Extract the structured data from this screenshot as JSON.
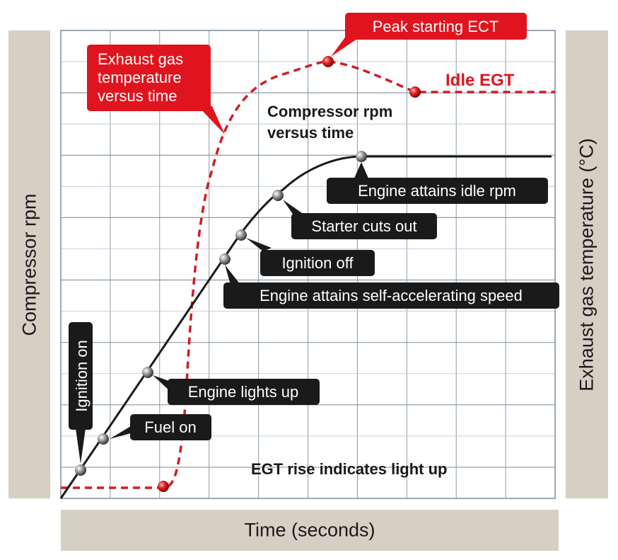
{
  "axes": {
    "left": "Compressor rpm",
    "right": "Exhaust gas temperature (°C)",
    "bottom": "Time (seconds)"
  },
  "colors": {
    "rpm_curve": "#1a1a1a",
    "egt_curve": "#d21c24",
    "callout_dark": "#1e1e1e",
    "callout_red": "#e0141e",
    "grid": "#8a9aa8",
    "axis_band": "#d6cfc4"
  },
  "curve_labels": {
    "rpm": [
      "Compressor rpm",
      "versus time"
    ],
    "egt": [
      "Exhaust gas",
      "temperature",
      "versus time"
    ]
  },
  "callouts": {
    "ignition_on": "Ignition on",
    "fuel_on": "Fuel on",
    "engine_lights_up": "Engine lights up",
    "self_accelerating": "Engine attains self-accelerating speed",
    "ignition_off": "Ignition off",
    "starter_cuts_out": "Starter cuts out",
    "idle_rpm": "Engine attains idle rpm",
    "peak_ect": "Peak starting ECT",
    "idle_egt": "Idle EGT",
    "egt_rise": "EGT rise indicates light up"
  }
}
